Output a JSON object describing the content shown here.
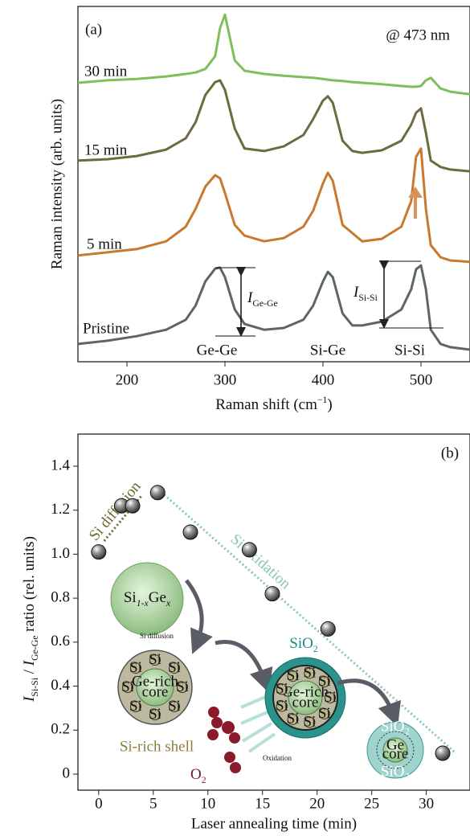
{
  "chart_data": [
    {
      "type": "line",
      "panel_label": "(a)",
      "annotation": "@ 473 nm",
      "ylabel": "Raman intensity (arb. units)",
      "xlabel": [
        {
          "text": "Raman shift (cm"
        },
        {
          "text": "−1",
          "sup": true
        },
        {
          "text": ")"
        }
      ],
      "xlim": [
        150,
        550
      ],
      "ylim": [
        0,
        100
      ],
      "xticks": [
        200,
        300,
        400,
        500
      ],
      "x": [
        150,
        180,
        210,
        240,
        260,
        270,
        280,
        290,
        295,
        300,
        310,
        320,
        340,
        360,
        380,
        390,
        400,
        405,
        410,
        420,
        430,
        440,
        460,
        480,
        490,
        495,
        500,
        505,
        510,
        520,
        530,
        550
      ],
      "series": [
        {
          "name": "Pristine",
          "color": "#5d6662",
          "values": [
            5.0,
            5.9,
            7.2,
            9.0,
            11.8,
            15.8,
            22.6,
            26.2,
            26.5,
            23.8,
            14.7,
            10.6,
            9.0,
            9.5,
            11.8,
            15.8,
            22.6,
            25.3,
            23.8,
            13.6,
            10.2,
            10.2,
            11.3,
            14.7,
            20.4,
            26.0,
            27.1,
            20.4,
            9.0,
            5.0,
            4.1,
            3.4
          ]
        },
        {
          "name": "5 min",
          "color": "#c8782f",
          "values": [
            29.9,
            30.8,
            31.7,
            33.9,
            38.0,
            43.0,
            49.3,
            52.5,
            51.6,
            47.5,
            38.5,
            35.5,
            33.9,
            34.8,
            38.0,
            42.5,
            50.2,
            53.2,
            50.9,
            38.5,
            36.2,
            33.9,
            34.6,
            38.0,
            45.2,
            57.7,
            60.0,
            43.0,
            32.8,
            29.4,
            28.5,
            28.1
          ]
        },
        {
          "name": "15 min",
          "color": "#6e6a40",
          "values": [
            56.6,
            57.0,
            57.9,
            59.7,
            62.9,
            67.4,
            75.1,
            78.7,
            79.2,
            76.5,
            65.6,
            60.0,
            59.3,
            60.6,
            63.8,
            68.3,
            73.5,
            74.7,
            72.9,
            62.2,
            59.3,
            58.8,
            59.5,
            62.2,
            66.7,
            70.1,
            71.3,
            64.5,
            56.6,
            54.8,
            54.1,
            53.6
          ]
        },
        {
          "name": "30 min",
          "color": "#7fbf5a",
          "values": [
            78.5,
            79.2,
            79.6,
            80.3,
            81.0,
            81.4,
            82.4,
            86.0,
            93.9,
            97.7,
            84.8,
            81.9,
            81.0,
            80.5,
            80.1,
            79.9,
            79.6,
            79.4,
            79.2,
            79.0,
            78.7,
            78.5,
            78.1,
            77.6,
            77.4,
            77.4,
            77.6,
            79.2,
            79.9,
            76.9,
            76.0,
            75.3
          ]
        }
      ],
      "peak_labels": [
        "Ge-Ge",
        "Si-Ge",
        "Si-Si"
      ],
      "intensity_labels": [
        [
          {
            "text": "I",
            "italic": true
          },
          {
            "text": "Ge-Ge",
            "sub": true
          }
        ],
        [
          {
            "text": "I",
            "italic": true
          },
          {
            "text": "Si-Si",
            "sub": true
          }
        ]
      ],
      "arrow_color": "#d8925a"
    },
    {
      "type": "scatter",
      "panel_label": "(b)",
      "ylabel": [
        {
          "text": "I",
          "italic": true
        },
        {
          "text": "Si-Si",
          "sub": true
        },
        {
          "text": " / "
        },
        {
          "text": "I",
          "italic": true
        },
        {
          "text": "Ge-Ge",
          "sub": true
        },
        {
          "text": " ratio (rel. units)"
        }
      ],
      "xlabel": "Laser annealing time (min)",
      "xlim": [
        -1.9,
        34
      ],
      "ylim": [
        -0.073,
        1.546
      ],
      "xticks": [
        0,
        5,
        10,
        15,
        20,
        25,
        30
      ],
      "yticks": [
        0,
        0.2,
        0.4,
        0.6,
        0.8,
        {
          "value": 1,
          "label": "1.0"
        },
        1.2,
        1.4
      ],
      "x": [
        0,
        2.1,
        3.1,
        5.4,
        8.4,
        13.8,
        15.9,
        21.0,
        31.5
      ],
      "values": [
        1.01,
        1.22,
        1.22,
        1.28,
        1.1,
        1.02,
        0.82,
        0.66,
        0.095
      ],
      "trend_lines": [
        {
          "name": "Si diffusion",
          "color": "#6b6a2c",
          "x": [
            0.5,
            4.0
          ],
          "y": [
            1.06,
            1.27
          ]
        },
        {
          "name": "Si oxidation",
          "color": "#86c7b8",
          "x": [
            6.0,
            32.6
          ],
          "y": [
            1.27,
            0.1
          ]
        }
      ]
    }
  ],
  "schematic": {
    "alloy": [
      {
        "text": "Si"
      },
      {
        "text": "1-x",
        "sub": true,
        "italic": true
      },
      {
        "text": "Ge"
      },
      {
        "text": "x",
        "sub": true,
        "italic": true
      }
    ],
    "diffusion": "Si diffusion",
    "core": [
      "Ge-rich",
      "core"
    ],
    "shell": "Si-rich shell",
    "si": "Si",
    "oxygen": [
      {
        "text": "O"
      },
      {
        "text": "2",
        "sub": true
      }
    ],
    "oxidation": "Oxidation",
    "oxide": [
      {
        "text": "SiO"
      },
      {
        "text": "2",
        "sub": true
      }
    ],
    "final_core": [
      "Ge",
      "core"
    ],
    "final_oxide": "SiO₂"
  }
}
